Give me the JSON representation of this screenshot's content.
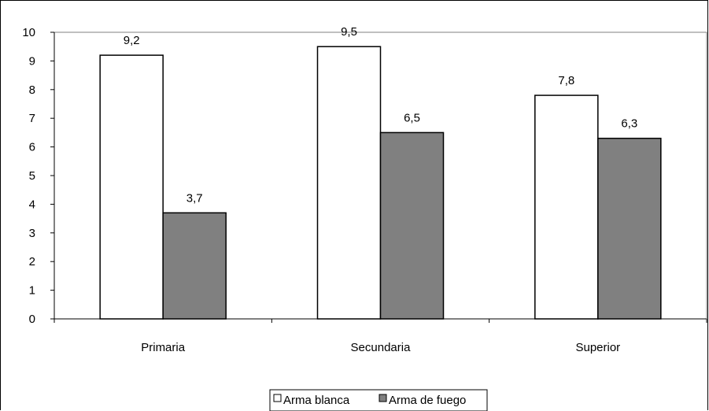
{
  "chart_data": {
    "type": "bar",
    "categories": [
      "Primaria",
      "Secundaria",
      "Superior"
    ],
    "series": [
      {
        "name": "Arma blanca",
        "values": [
          9.2,
          9.5,
          7.8
        ],
        "labels": [
          "9,2",
          "9,5",
          "7,8"
        ],
        "color": "#ffffff"
      },
      {
        "name": "Arma de fuego",
        "values": [
          3.7,
          6.5,
          6.3
        ],
        "labels": [
          "3,7",
          "6,5",
          "6,3"
        ],
        "color": "#808080"
      }
    ],
    "ylim": [
      0,
      10
    ],
    "yticks": [
      0,
      1,
      2,
      3,
      4,
      5,
      6,
      7,
      8,
      9,
      10
    ],
    "grid": false,
    "legend_position": "bottom"
  }
}
